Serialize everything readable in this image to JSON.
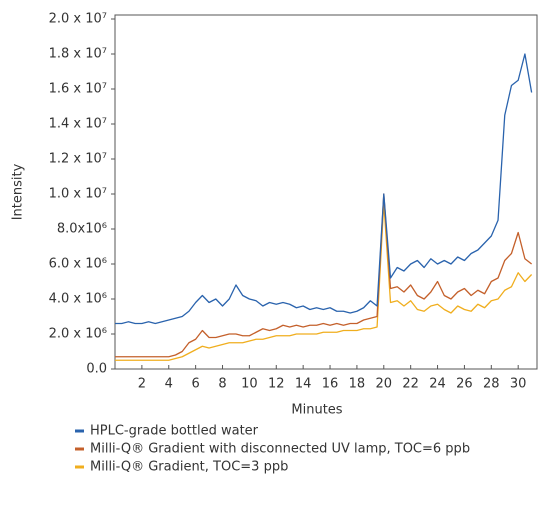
{
  "chart_data": {
    "type": "line",
    "x_label": "Minutes",
    "y_label": "Intensity",
    "x": [
      0,
      0.5,
      1,
      1.5,
      2,
      2.5,
      3,
      3.5,
      4,
      4.5,
      5,
      5.5,
      6,
      6.5,
      7,
      7.5,
      8,
      8.5,
      9,
      9.5,
      10,
      10.5,
      11,
      11.5,
      12,
      12.5,
      13,
      13.5,
      14,
      14.5,
      15,
      15.5,
      16,
      16.5,
      17,
      17.5,
      18,
      18.5,
      19,
      19.5,
      20,
      20.5,
      21,
      21.5,
      22,
      22.5,
      23,
      23.5,
      24,
      24.5,
      25,
      25.5,
      26,
      26.5,
      27,
      27.5,
      28,
      28.5,
      29,
      29.5,
      30,
      30.5,
      31
    ],
    "xlim": [
      0,
      31.4
    ],
    "xticks": [
      2,
      4,
      6,
      8,
      10,
      12,
      14,
      16,
      18,
      20,
      22,
      24,
      26,
      28,
      30
    ],
    "ylim": [
      0,
      20000000
    ],
    "yticks": [
      {
        "value": 0,
        "label": "0.0"
      },
      {
        "value": 2000000,
        "label": "2.0 x 10⁶"
      },
      {
        "value": 4000000,
        "label": "4.0 x 10⁶"
      },
      {
        "value": 6000000,
        "label": "6.0 x 10⁶"
      },
      {
        "value": 8000000,
        "label": "8.0x10⁶"
      },
      {
        "value": 10000000,
        "label": "1.0 x 10⁷"
      },
      {
        "value": 12000000,
        "label": "1.2 x 10⁷"
      },
      {
        "value": 14000000,
        "label": "1.4 x 10⁷"
      },
      {
        "value": 16000000,
        "label": "1.6 x 10⁷"
      },
      {
        "value": 18000000,
        "label": "1.8 x 10⁷"
      },
      {
        "value": 20000000,
        "label": "2.0 x 10⁷"
      }
    ],
    "series": [
      {
        "name": "HPLC-grade bottled water",
        "color": "#2a63ad",
        "values": [
          2600000,
          2600000,
          2700000,
          2600000,
          2600000,
          2700000,
          2600000,
          2700000,
          2800000,
          2900000,
          3000000,
          3300000,
          3800000,
          4200000,
          3800000,
          4000000,
          3600000,
          4000000,
          4800000,
          4200000,
          4000000,
          3900000,
          3600000,
          3800000,
          3700000,
          3800000,
          3700000,
          3500000,
          3600000,
          3400000,
          3500000,
          3400000,
          3500000,
          3300000,
          3300000,
          3200000,
          3300000,
          3500000,
          3900000,
          3600000,
          10000000,
          5200000,
          5800000,
          5600000,
          6000000,
          6200000,
          5800000,
          6300000,
          6000000,
          6200000,
          6000000,
          6400000,
          6200000,
          6600000,
          6800000,
          7200000,
          7600000,
          8500000,
          14500000,
          16200000,
          16500000,
          18000000,
          15800000
        ]
      },
      {
        "name": "Milli-Q® Gradient with disconnected UV lamp, TOC=6 ppb",
        "color": "#c4602b",
        "values": [
          700000,
          700000,
          700000,
          700000,
          700000,
          700000,
          700000,
          700000,
          700000,
          800000,
          1000000,
          1500000,
          1700000,
          2200000,
          1800000,
          1800000,
          1900000,
          2000000,
          2000000,
          1900000,
          1900000,
          2100000,
          2300000,
          2200000,
          2300000,
          2500000,
          2400000,
          2500000,
          2400000,
          2500000,
          2500000,
          2600000,
          2500000,
          2600000,
          2500000,
          2600000,
          2600000,
          2800000,
          2900000,
          3000000,
          10000000,
          4600000,
          4700000,
          4400000,
          4800000,
          4200000,
          4000000,
          4400000,
          5000000,
          4200000,
          4000000,
          4400000,
          4600000,
          4200000,
          4500000,
          4300000,
          5000000,
          5200000,
          6200000,
          6600000,
          7800000,
          6300000,
          6000000
        ]
      },
      {
        "name": "Milli-Q® Gradient, TOC=3 ppb",
        "color": "#f0ae1e",
        "values": [
          500000,
          500000,
          500000,
          500000,
          500000,
          500000,
          500000,
          500000,
          500000,
          600000,
          700000,
          900000,
          1100000,
          1300000,
          1200000,
          1300000,
          1400000,
          1500000,
          1500000,
          1500000,
          1600000,
          1700000,
          1700000,
          1800000,
          1900000,
          1900000,
          1900000,
          2000000,
          2000000,
          2000000,
          2000000,
          2100000,
          2100000,
          2100000,
          2200000,
          2200000,
          2200000,
          2300000,
          2300000,
          2400000,
          9500000,
          3800000,
          3900000,
          3600000,
          3900000,
          3400000,
          3300000,
          3600000,
          3700000,
          3400000,
          3200000,
          3600000,
          3400000,
          3300000,
          3700000,
          3500000,
          3900000,
          4000000,
          4500000,
          4700000,
          5500000,
          5000000,
          5400000
        ]
      }
    ]
  }
}
